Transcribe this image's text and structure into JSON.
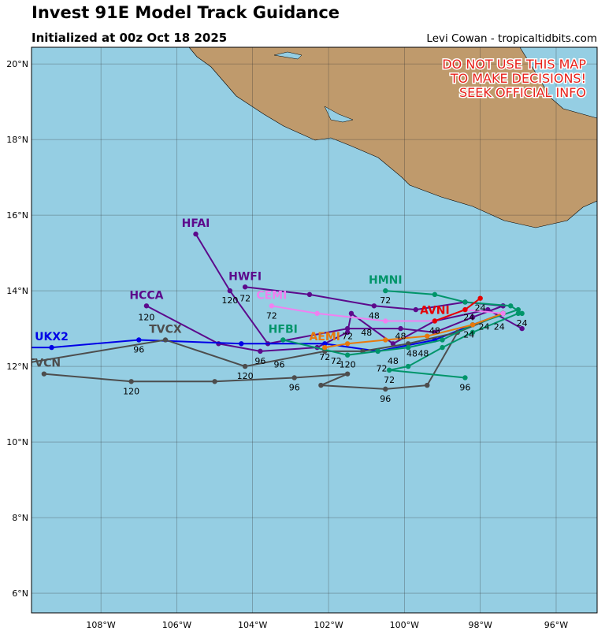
{
  "header": {
    "title": "Invest 91E Model Track Guidance",
    "subtitle": "Initialized at 00z Oct 18 2025",
    "credit": "Levi Cowan - tropicaltidbits.com"
  },
  "warning": [
    "DO NOT USE THIS MAP",
    "TO MAKE DECISIONS!",
    "SEEK OFFICIAL INFO"
  ],
  "map": {
    "xlim": [
      -109.83,
      -94.92
    ],
    "ylim": [
      5.48,
      20.44
    ],
    "xticks": [
      {
        "value": -108,
        "label": "108°W"
      },
      {
        "value": -106,
        "label": "106°W"
      },
      {
        "value": -104,
        "label": "104°W"
      },
      {
        "value": -102,
        "label": "102°W"
      },
      {
        "value": -100,
        "label": "100°W"
      },
      {
        "value": -98,
        "label": "98°W"
      },
      {
        "value": -96,
        "label": "96°W"
      }
    ],
    "yticks": [
      {
        "value": 6,
        "label": "6°N"
      },
      {
        "value": 8,
        "label": "8°N"
      },
      {
        "value": 10,
        "label": "10°N"
      },
      {
        "value": 12,
        "label": "12°N"
      },
      {
        "value": 14,
        "label": "14°N"
      },
      {
        "value": 16,
        "label": "16°N"
      },
      {
        "value": 18,
        "label": "18°N"
      },
      {
        "value": 20,
        "label": "20°N"
      }
    ],
    "tracks": [
      {
        "name": "HFAI",
        "color": "#5c0a8c",
        "lon": [
          -97.4,
          -98.2,
          -99.2,
          -100.1,
          -101.5,
          -103.6,
          -104.6,
          -105.5
        ],
        "lat": [
          13.6,
          13.3,
          12.9,
          13.0,
          13.0,
          12.6,
          14.0,
          15.5
        ]
      },
      {
        "name": "HWFI",
        "color": "#5c0a8c",
        "lon": [
          -97.4,
          -98.4,
          -99.7,
          -100.8,
          -102.5,
          -104.2
        ],
        "lat": [
          13.6,
          13.7,
          13.5,
          13.6,
          13.9,
          14.1
        ]
      },
      {
        "name": "HCCA",
        "color": "#5c0a8c",
        "lon": [
          -96.9,
          -97.8,
          -99.2,
          -100.3,
          -101.4,
          -101.5,
          -102.3,
          -103.8,
          -104.9,
          -106.8
        ],
        "lat": [
          13.0,
          13.5,
          13.2,
          12.6,
          13.4,
          12.9,
          12.5,
          12.4,
          12.6,
          13.6
        ]
      },
      {
        "name": "UKX2",
        "color": "#0000e6",
        "lon": [
          -97.4,
          -98.2,
          -99.2,
          -100.7,
          -102.1,
          -104.3,
          -107.0,
          -109.3,
          -109.9
        ],
        "lat": [
          13.4,
          13.1,
          12.7,
          12.4,
          12.6,
          12.6,
          12.7,
          12.5,
          12.5
        ]
      },
      {
        "name": "TVCX",
        "color": "#4d4d4d",
        "lon": [
          -97.4,
          -98.6,
          -99.9,
          -101.1,
          -102.1,
          -104.2,
          -106.3,
          -109.9
        ],
        "lat": [
          13.4,
          12.9,
          12.6,
          12.4,
          12.4,
          12.0,
          12.7,
          12.1
        ]
      },
      {
        "name": "TVCN",
        "color": "#4d4d4d",
        "lon": [
          -97.4,
          -98.6,
          -99.4,
          -100.5,
          -102.2,
          -101.5,
          -102.9,
          -105.0,
          -107.2,
          -109.5
        ],
        "lat": [
          13.4,
          12.9,
          11.5,
          11.4,
          11.5,
          11.8,
          11.7,
          11.6,
          11.6,
          11.8
        ]
      },
      {
        "name": "HMNI",
        "color": "#00956a",
        "lon": [
          -96.9,
          -97.2,
          -98.4,
          -99.2,
          -100.5
        ],
        "lat": [
          13.4,
          13.6,
          13.7,
          13.9,
          14.0
        ]
      },
      {
        "name": "HFBI",
        "color": "#00956a",
        "lon": [
          -97.0,
          -98.2,
          -99.0,
          -99.9,
          -100.7,
          -101.5,
          -103.2
        ],
        "lat": [
          13.5,
          13.1,
          12.7,
          12.5,
          12.4,
          12.3,
          12.7
        ]
      },
      {
        "color": "#00956a",
        "lon": [
          -97.0,
          -98.2,
          -99.0,
          -99.9,
          -100.4,
          -98.4
        ],
        "lat": [
          13.4,
          12.9,
          12.5,
          12.0,
          11.9,
          11.7
        ]
      },
      {
        "name": "AEMI",
        "color": "#e8780c",
        "lon": [
          -97.4,
          -98.2,
          -99.4,
          -100.5,
          -101.5,
          -102.1
        ],
        "lat": [
          13.4,
          13.1,
          12.8,
          12.7,
          12.6,
          12.5
        ]
      },
      {
        "name": "CEMI",
        "color": "#f080f0",
        "lon": [
          -97.4,
          -98.4,
          -99.2,
          -100.5,
          -102.3,
          -103.5
        ],
        "lat": [
          13.4,
          13.5,
          13.2,
          13.2,
          13.4,
          13.6
        ]
      },
      {
        "name": "AVNI",
        "color": "#e60000",
        "lon": [
          -98.0,
          -98.4,
          -99.2
        ],
        "lat": [
          13.8,
          13.5,
          13.2
        ]
      }
    ],
    "hour_labels": [
      {
        "text": "120",
        "lon": -106.8,
        "lat": 13.3
      },
      {
        "text": "72",
        "lon": -104.2,
        "lat": 13.8
      },
      {
        "text": "120",
        "lon": -104.6,
        "lat": 13.75
      },
      {
        "text": "72",
        "lon": -103.5,
        "lat": 13.35
      },
      {
        "text": "72",
        "lon": -100.5,
        "lat": 13.75
      },
      {
        "text": "48",
        "lon": -100.8,
        "lat": 13.35
      },
      {
        "text": "48",
        "lon": -101.0,
        "lat": 12.9
      },
      {
        "text": "72",
        "lon": -101.5,
        "lat": 12.8
      },
      {
        "text": "48",
        "lon": -100.1,
        "lat": 12.8
      },
      {
        "text": "48",
        "lon": -99.2,
        "lat": 12.95
      },
      {
        "text": "96",
        "lon": -107.0,
        "lat": 12.45
      },
      {
        "text": "96",
        "lon": -103.8,
        "lat": 12.15
      },
      {
        "text": "96",
        "lon": -103.3,
        "lat": 12.05
      },
      {
        "text": "120",
        "lon": -104.2,
        "lat": 11.75
      },
      {
        "text": "120",
        "lon": -107.2,
        "lat": 11.35
      },
      {
        "text": "96",
        "lon": -102.9,
        "lat": 11.45
      },
      {
        "text": "96",
        "lon": -100.5,
        "lat": 11.15
      },
      {
        "text": "96",
        "lon": -98.4,
        "lat": 11.45
      },
      {
        "text": "72",
        "lon": -100.4,
        "lat": 11.65
      },
      {
        "text": "72",
        "lon": -100.6,
        "lat": 11.95
      },
      {
        "text": "48",
        "lon": -100.3,
        "lat": 12.15
      },
      {
        "text": "120",
        "lon": -101.5,
        "lat": 12.05
      },
      {
        "text": "72",
        "lon": -102.1,
        "lat": 12.25
      },
      {
        "text": "72",
        "lon": -101.8,
        "lat": 12.15
      },
      {
        "text": "48",
        "lon": -99.8,
        "lat": 12.35
      },
      {
        "text": "48",
        "lon": -99.5,
        "lat": 12.35
      },
      {
        "text": "24",
        "lon": -98.3,
        "lat": 12.85
      },
      {
        "text": "24",
        "lon": -97.9,
        "lat": 13.05
      },
      {
        "text": "24",
        "lon": -97.5,
        "lat": 13.05
      },
      {
        "text": "24",
        "lon": -96.9,
        "lat": 13.15
      },
      {
        "text": "24",
        "lon": -98.0,
        "lat": 13.55
      },
      {
        "text": "24",
        "lon": -98.3,
        "lat": 13.3
      }
    ]
  }
}
